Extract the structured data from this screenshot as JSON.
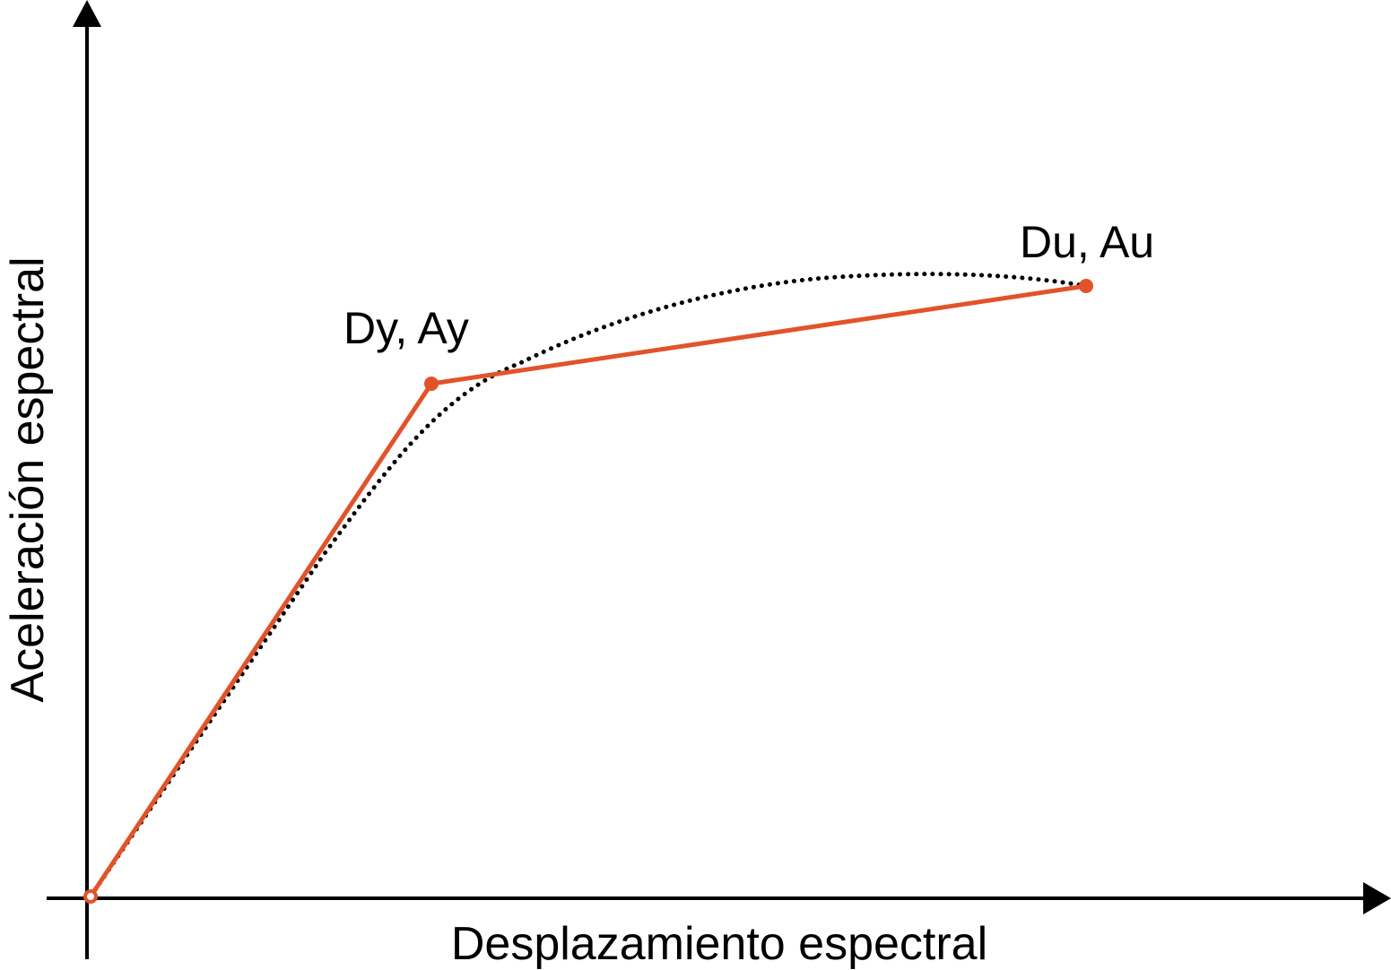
{
  "axes": {
    "x_label": "Desplazamiento espectral",
    "y_label": "Aceleración espectral"
  },
  "points": {
    "origin_color": "#e2532b",
    "yield": {
      "label": "Dy, Ay"
    },
    "ultimate": {
      "label": "Du, Au"
    }
  },
  "curves": {
    "bilinear_color": "#e2532b",
    "capacity_color": "#000000"
  }
}
